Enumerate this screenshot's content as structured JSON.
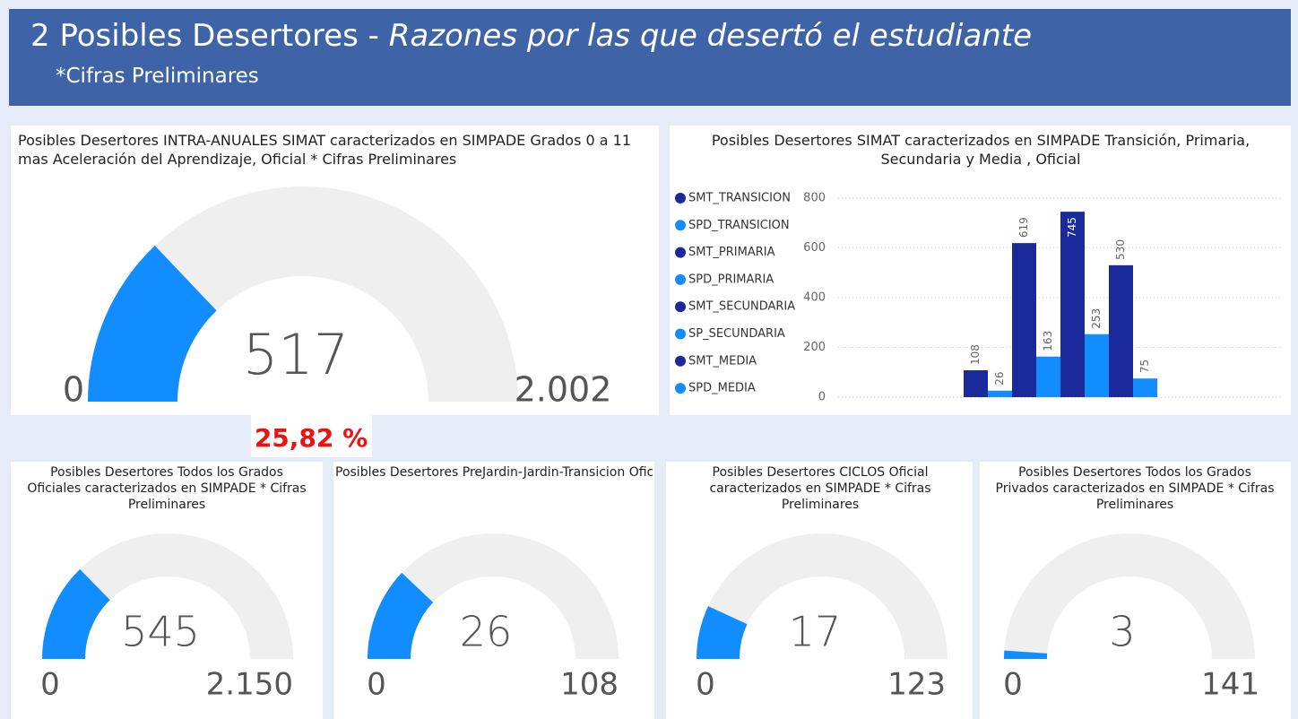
{
  "header": {
    "title": "2 Posibles Desertores - ",
    "title_italic": "Razones por las que desertó el estudiante",
    "subtitle": "*Cifras Preliminares"
  },
  "chart_data": [
    {
      "type": "gauge",
      "title": "Posibles Desertores INTRA-ANUALES SIMAT caracterizados en SIMPADE Grados 0 a 11 mas Aceleración del Aprendizaje, Oficial * Cifras Preliminares",
      "value": 517,
      "ylim": [
        0,
        2002
      ],
      "yticks": [
        0,
        {
          "value": 2002,
          "label": "2.002"
        }
      ],
      "percent": {
        "value": 25.82,
        "label": "25,82 %"
      },
      "color": "#118dff"
    },
    {
      "type": "bar",
      "title": "Posibles Desertores SIMAT caracterizados en SIMPADE Transición, Primaria, Secundaria y Media , Oficial",
      "categories": [
        null
      ],
      "ylim": [
        0,
        850
      ],
      "yticks": [
        0,
        200,
        400,
        600,
        800
      ],
      "grid": true,
      "legend": "left",
      "series": [
        {
          "name": "SMT_TRANSICION",
          "color": "#1a2a9a",
          "values": [
            108
          ]
        },
        {
          "name": "SPD_TRANSICION",
          "color": "#118dff",
          "values": [
            26
          ]
        },
        {
          "name": "SMT_PRIMARIA",
          "color": "#1a2a9a",
          "values": [
            619
          ]
        },
        {
          "name": "SPD_PRIMARIA",
          "color": "#118dff",
          "values": [
            163
          ]
        },
        {
          "name": "SMT_SECUNDARIA",
          "color": "#1a2a9a",
          "values": [
            745
          ]
        },
        {
          "name": "SP_SECUNDARIA",
          "color": "#118dff",
          "values": [
            253
          ]
        },
        {
          "name": "SMT_MEDIA",
          "color": "#1a2a9a",
          "values": [
            530
          ]
        },
        {
          "name": "SPD_MEDIA",
          "color": "#118dff",
          "values": [
            75
          ]
        }
      ]
    },
    {
      "type": "gauge",
      "title": "Posibles Desertores Todos los Grados Oficiales caracterizados en SIMPADE * Cifras Preliminares",
      "value": 545,
      "ylim": [
        0,
        2150
      ],
      "yticks": [
        0,
        {
          "value": 2150,
          "label": "2.150"
        }
      ],
      "color": "#118dff"
    },
    {
      "type": "gauge",
      "title": "Posibles Desertores PreJardin-Jardin-Transicion Oficial caracterizados en SIMPADE * Cifras Prelimin...",
      "value": 26,
      "ylim": [
        0,
        108
      ],
      "yticks": [
        0,
        108
      ],
      "color": "#118dff"
    },
    {
      "type": "gauge",
      "title": "Posibles Desertores CICLOS Oficial caracterizados en SIMPADE * Cifras Preliminares",
      "value": 17,
      "ylim": [
        0,
        123
      ],
      "yticks": [
        0,
        123
      ],
      "color": "#118dff"
    },
    {
      "type": "gauge",
      "title": "Posibles Desertores Todos los Grados Privados caracterizados en SIMPADE * Cifras Preliminares",
      "value": 3,
      "ylim": [
        0,
        141
      ],
      "yticks": [
        0,
        141
      ],
      "color": "#118dff"
    }
  ]
}
